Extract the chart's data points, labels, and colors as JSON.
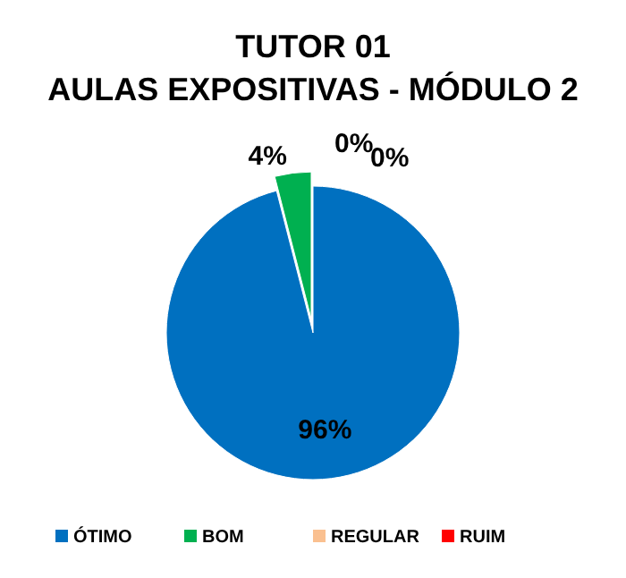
{
  "chart_data": {
    "type": "pie",
    "title": "TUTOR 01\nAULAS EXPOSITIVAS - MÓDULO 2",
    "categories": [
      "ÓTIMO",
      "BOM",
      "REGULAR",
      "RUIM"
    ],
    "values": [
      96,
      4,
      0,
      0
    ],
    "colors": [
      "#0070c0",
      "#00b050",
      "#fac090",
      "#ff0000"
    ],
    "value_labels": [
      "96%",
      "4%",
      "0%",
      "0%"
    ],
    "legend": "bottom"
  }
}
